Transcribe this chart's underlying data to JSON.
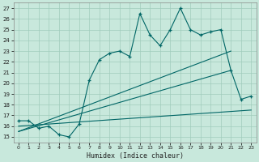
{
  "title": "",
  "xlabel": "Humidex (Indice chaleur)",
  "bg_color": "#c8e8dc",
  "line_color": "#006666",
  "grid_color": "#a0ccbc",
  "x_ticks": [
    0,
    1,
    2,
    3,
    4,
    5,
    6,
    7,
    8,
    9,
    10,
    11,
    12,
    13,
    14,
    15,
    16,
    17,
    18,
    19,
    20,
    21,
    22,
    23
  ],
  "y_ticks": [
    15,
    16,
    17,
    18,
    19,
    20,
    21,
    22,
    23,
    24,
    25,
    26,
    27
  ],
  "xlim": [
    -0.5,
    23.5
  ],
  "ylim": [
    14.5,
    27.5
  ],
  "series1_x": [
    0,
    1,
    2,
    3,
    4,
    5,
    6,
    7,
    8,
    9,
    10,
    11,
    12,
    13,
    14,
    15,
    16,
    17,
    18,
    19,
    20,
    21,
    22,
    23
  ],
  "series1_y": [
    16.5,
    16.5,
    15.8,
    16.0,
    15.2,
    15.0,
    16.2,
    20.3,
    22.2,
    22.8,
    23.0,
    22.5,
    26.5,
    24.5,
    23.5,
    25.0,
    27.0,
    25.0,
    24.5,
    24.8,
    25.0,
    21.2,
    18.5,
    18.8
  ],
  "line1_x": [
    0,
    23
  ],
  "line1_y": [
    16.0,
    17.5
  ],
  "line2_x": [
    0,
    21
  ],
  "line2_y": [
    15.5,
    21.2
  ],
  "line3_x": [
    0,
    21
  ],
  "line3_y": [
    15.5,
    23.0
  ]
}
